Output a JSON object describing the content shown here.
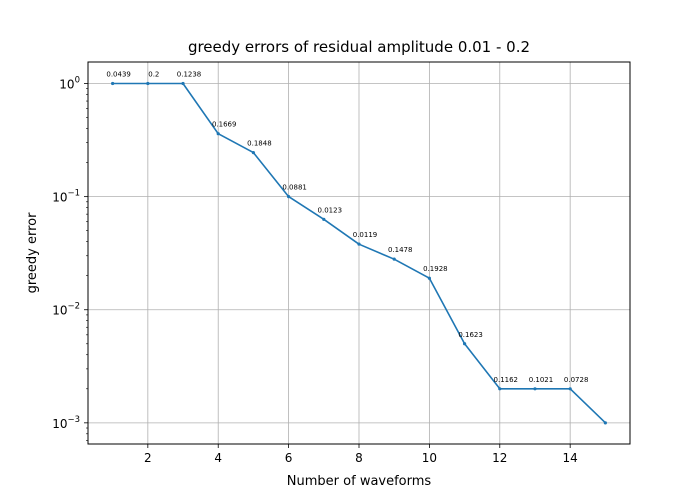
{
  "chart_data": {
    "type": "line",
    "title": "greedy errors of residual amplitude 0.01 - 0.2",
    "xlabel": "Number of waveforms",
    "ylabel": "greedy error",
    "yscale": "log",
    "xlim": [
      0.3,
      15.7
    ],
    "ylim": [
      0.00065,
      1.55
    ],
    "grid": true,
    "x_ticks": [
      2,
      4,
      6,
      8,
      10,
      12,
      14
    ],
    "x_tick_labels": [
      "2",
      "4",
      "6",
      "8",
      "10",
      "12",
      "14"
    ],
    "y_ticks": [
      1,
      0.1,
      0.01,
      0.001
    ],
    "y_tick_labels": [
      {
        "base": "10",
        "exp": "0"
      },
      {
        "base": "10",
        "exp": "−1"
      },
      {
        "base": "10",
        "exp": "−2"
      },
      {
        "base": "10",
        "exp": "−3"
      }
    ],
    "color": "#1f77b4",
    "series": [
      {
        "x": [
          1,
          2,
          3,
          4,
          5,
          6,
          7,
          8,
          9,
          10,
          11,
          12,
          13,
          14,
          15
        ],
        "y": [
          1.0,
          1.0,
          1.0,
          0.36,
          0.245,
          0.1,
          0.063,
          0.038,
          0.028,
          0.019,
          0.005,
          0.002,
          0.002,
          0.002,
          0.001
        ]
      }
    ],
    "point_labels": [
      "0.0439",
      "0.2",
      "0.1238",
      "0.1669",
      "0.1848",
      "0.0881",
      "0.0123",
      "0.0119",
      "0.1478",
      "0.1928",
      "0.1623",
      "0.1162",
      "0.1021",
      "0.0728",
      ""
    ]
  }
}
